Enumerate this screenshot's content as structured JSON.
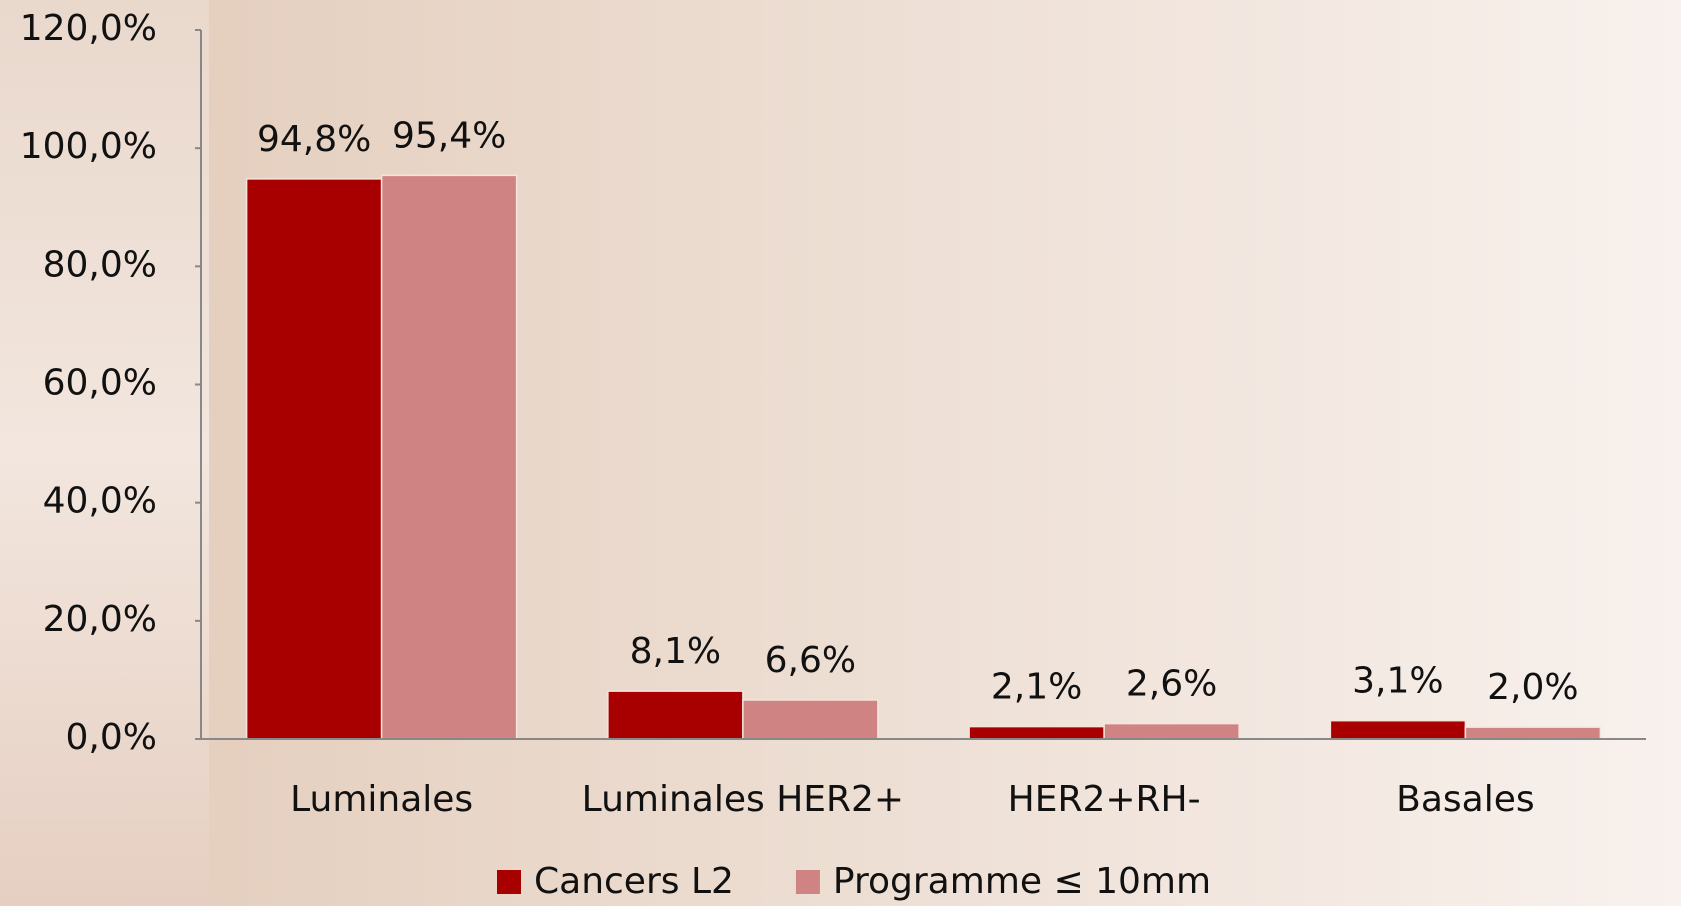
{
  "chart_data": {
    "type": "bar",
    "categories": [
      "Luminales",
      "Luminales HER2+",
      "HER2+RH-",
      "Basales"
    ],
    "series": [
      {
        "name": "Cancers L2",
        "color": "#a80000",
        "values": [
          94.8,
          8.1,
          2.1,
          3.1
        ],
        "value_labels": [
          "94,8%",
          "8,1%",
          "2,1%",
          "3,1%"
        ]
      },
      {
        "name": "Programme ≤ 10mm",
        "color": "#d08383",
        "values": [
          95.4,
          6.6,
          2.6,
          2.0
        ],
        "value_labels": [
          "95,4%",
          "6,6%",
          "2,6%",
          "2,0%"
        ]
      }
    ],
    "ylim": [
      0,
      120
    ],
    "yticks": [
      {
        "value": 0,
        "label": "0,0%"
      },
      {
        "value": 20,
        "label": "20,0%"
      },
      {
        "value": 40,
        "label": "40,0%"
      },
      {
        "value": 60,
        "label": "60,0%"
      },
      {
        "value": 80,
        "label": "80,0%"
      },
      {
        "value": 100,
        "label": "100,0%"
      },
      {
        "value": 120,
        "label": "120,0%"
      }
    ],
    "legend": "bottom"
  }
}
